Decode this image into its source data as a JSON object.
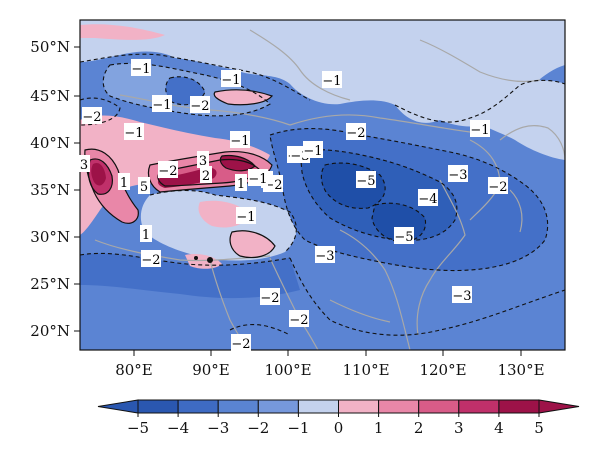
{
  "map": {
    "lat_ticks": [
      "50°N",
      "45°N",
      "40°N",
      "35°N",
      "30°N",
      "25°N",
      "20°N"
    ],
    "lon_ticks": [
      "80°E",
      "90°E",
      "100°E",
      "110°E",
      "120°E",
      "130°E"
    ],
    "contour_labels": [
      "−1",
      "−1",
      "−1",
      "−2",
      "−1",
      "−2",
      "−1",
      "−2",
      "−1",
      "−1",
      "−2",
      "−3",
      "−1",
      "−5",
      "−4",
      "−3",
      "−2",
      "−5",
      "−3",
      "−3",
      "−2",
      "−2",
      "−2",
      "−2",
      "−1",
      "2",
      "1",
      "3",
      "2",
      "2",
      "5",
      "1",
      "1",
      "−2",
      "−1",
      "−2",
      "1",
      "3"
    ],
    "colors": {
      "neg5": "#1f4fa8",
      "neg4": "#2f5fb8",
      "neg3": "#4470c8",
      "neg2": "#5b84d3",
      "neg1": "#82a3df",
      "zero": "#c4d2ee",
      "pos1": "#f2b2c6",
      "pos2": "#e987a8",
      "pos3": "#d85c88",
      "pos4": "#c0306a",
      "pos5": "#9d1248",
      "borders": "#a8a8a8"
    }
  },
  "colorbar": {
    "ticks": [
      "−5",
      "−4",
      "−3",
      "−2",
      "−1",
      "0",
      "1",
      "2",
      "3",
      "4",
      "5"
    ],
    "colors": [
      "#2a57b0",
      "#3e6bc3",
      "#5a84d2",
      "#7698dc",
      "#c4d2ee",
      "#f2b2c6",
      "#e987a8",
      "#d85c88",
      "#c0306a",
      "#9d1248"
    ]
  }
}
